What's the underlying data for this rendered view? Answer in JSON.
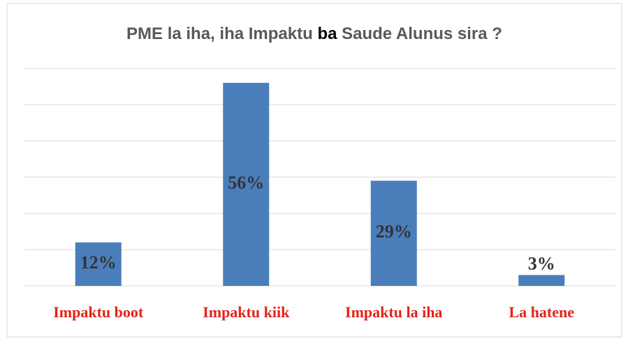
{
  "chart_data": {
    "type": "bar",
    "title": [
      "PME la iha, iha Impaktu ",
      "ba",
      " Saude Alunus sira ?"
    ],
    "categories": [
      "Impaktu boot",
      "Impaktu kiik",
      "Impaktu la iha",
      "La hatene"
    ],
    "values": [
      12,
      56,
      29,
      3
    ],
    "value_labels": [
      "12%",
      "56%",
      "29%",
      "3%"
    ],
    "color": "#4a7ebb",
    "ylim": [
      0,
      60
    ],
    "yticks": [
      0,
      10,
      20,
      30,
      40,
      50,
      60
    ],
    "grid": true
  }
}
